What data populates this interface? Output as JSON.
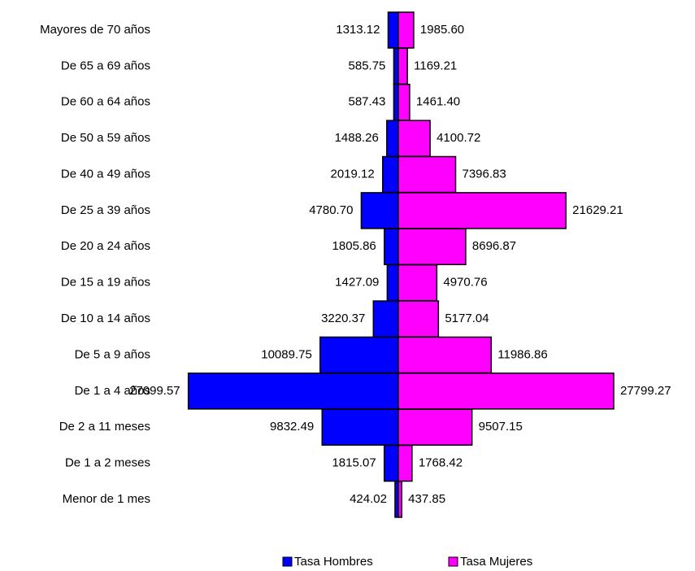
{
  "chart_data": {
    "type": "pyramid",
    "categories": [
      "Mayores de 70 años",
      "De 65 a 69 años",
      "De 60 a 64 años",
      "De 50 a 59 años",
      "De 40 a 49 años",
      "De 25 a 39 años",
      "De 20 a 24 años",
      "De 15 a 19 años",
      "De 10 a 14 años",
      "De 5 a 9 años",
      "De 1 a 4 años",
      "De 2 a 11 meses",
      "De 1 a 2 meses",
      "Menor de 1 mes"
    ],
    "series": [
      {
        "name": "Tasa Hombres",
        "color": "#0000ff",
        "values": [
          1313.12,
          585.75,
          587.43,
          1488.26,
          2019.12,
          4780.7,
          1805.86,
          1427.09,
          3220.37,
          10089.75,
          27099.57,
          9832.49,
          1815.07,
          424.02
        ],
        "value_labels": [
          "1313.12",
          "585.75",
          "587.43",
          "1488.26",
          "2019.12",
          "4780.70",
          "1805.86",
          "1427.09",
          "3220.37",
          "10089.75",
          "27099.57",
          "9832.49",
          "1815.07",
          "424.02"
        ]
      },
      {
        "name": "Tasa Mujeres",
        "color": "#ff00ff",
        "values": [
          1985.6,
          1169.21,
          1461.4,
          4100.72,
          7396.83,
          21629.21,
          8696.87,
          4970.76,
          5177.04,
          11986.86,
          27799.27,
          9507.15,
          1768.42,
          437.85
        ],
        "value_labels": [
          "1985.60",
          "1169.21",
          "1461.40",
          "4100.72",
          "7396.83",
          "21629.21",
          "8696.87",
          "4970.76",
          "5177.04",
          "11986.86",
          "27799.27",
          "9507.15",
          "1768.42",
          "437.85"
        ]
      }
    ]
  }
}
